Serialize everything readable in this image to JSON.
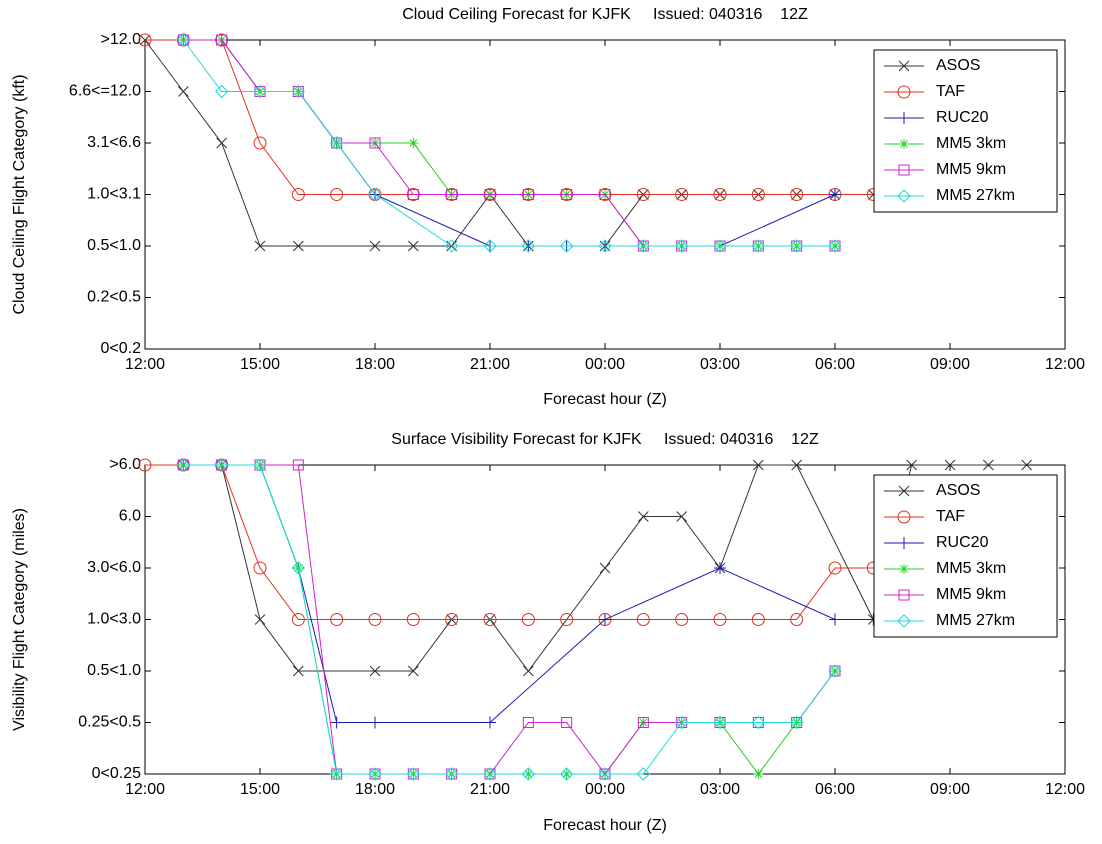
{
  "chart_data": [
    {
      "type": "line",
      "title": "Cloud Ceiling Forecast for KJFK     Issued: 040316    12Z",
      "xlabel": "Forecast hour (Z)",
      "ylabel": "Cloud Ceiling Flight Category (kft)",
      "xlim": [
        0,
        24
      ],
      "xticks": [
        {
          "value": 0,
          "label": "12:00"
        },
        {
          "value": 3,
          "label": "15:00"
        },
        {
          "value": 6,
          "label": "18:00"
        },
        {
          "value": 9,
          "label": "21:00"
        },
        {
          "value": 12,
          "label": "00:00"
        },
        {
          "value": 15,
          "label": "03:00"
        },
        {
          "value": 18,
          "label": "06:00"
        },
        {
          "value": 21,
          "label": "09:00"
        },
        {
          "value": 24,
          "label": "12:00"
        }
      ],
      "ylim": [
        0,
        6
      ],
      "yticks": [
        {
          "value": 0,
          "label": "0<0.2"
        },
        {
          "value": 1,
          "label": "0.2<0.5"
        },
        {
          "value": 2,
          "label": "0.5<1.0"
        },
        {
          "value": 3,
          "label": "1.0<3.1"
        },
        {
          "value": 4,
          "label": "3.1<6.6"
        },
        {
          "value": 5,
          "label": "6.6<=12.0"
        },
        {
          "value": 6,
          "label": ">12.0"
        }
      ],
      "legend": "upper right",
      "series": [
        {
          "name": "ASOS",
          "color": "#333333",
          "marker": "x",
          "x": [
            0,
            1,
            2,
            3,
            4,
            6,
            7,
            8,
            9,
            10,
            12,
            13,
            14,
            15,
            16,
            17,
            18,
            19
          ],
          "values": [
            6,
            5,
            4,
            2,
            2,
            2,
            2,
            2,
            3,
            2,
            2,
            3,
            3,
            3,
            3,
            3,
            3,
            3
          ]
        },
        {
          "name": "TAF",
          "color": "#e03020",
          "marker": "o",
          "x": [
            0,
            1,
            2,
            3,
            4,
            5,
            6,
            7,
            8,
            9,
            10,
            11,
            12,
            13,
            14,
            15,
            16,
            17,
            18,
            19
          ],
          "values": [
            6,
            6,
            6,
            4,
            3,
            3,
            3,
            3,
            3,
            3,
            3,
            3,
            3,
            3,
            3,
            3,
            3,
            3,
            3,
            3
          ]
        },
        {
          "name": "RUC20",
          "color": "#1a1ab0",
          "marker": "+",
          "x": [
            1,
            2,
            3,
            4,
            5,
            6,
            9,
            10,
            11,
            12,
            13,
            14,
            15,
            18
          ],
          "values": [
            6,
            6,
            5,
            5,
            4,
            3,
            2,
            2,
            2,
            2,
            2,
            2,
            2,
            3
          ]
        },
        {
          "name": "MM5 3km",
          "color": "#20d020",
          "marker": "*",
          "x": [
            1,
            2,
            3,
            4,
            5,
            6,
            7,
            8,
            9,
            10,
            11,
            12,
            13,
            14,
            15,
            16,
            17,
            18
          ],
          "values": [
            6,
            6,
            5,
            5,
            4,
            4,
            4,
            3,
            3,
            3,
            3,
            3,
            2,
            2,
            2,
            2,
            2,
            2
          ]
        },
        {
          "name": "MM5 9km",
          "color": "#d020d0",
          "marker": "s",
          "x": [
            1,
            2,
            3,
            4,
            5,
            6,
            7,
            8,
            9,
            10,
            11,
            12,
            13,
            14,
            15,
            16,
            17,
            18
          ],
          "values": [
            6,
            6,
            5,
            5,
            4,
            4,
            3,
            3,
            3,
            3,
            3,
            3,
            2,
            2,
            2,
            2,
            2,
            2
          ]
        },
        {
          "name": "MM5 27km",
          "color": "#20d8d8",
          "marker": "d",
          "x": [
            1,
            2,
            3,
            4,
            5,
            6,
            8,
            9,
            10,
            11,
            12,
            13,
            14,
            15,
            16,
            17,
            18
          ],
          "values": [
            6,
            5,
            5,
            5,
            4,
            3,
            2,
            2,
            2,
            2,
            2,
            2,
            2,
            2,
            2,
            2,
            2
          ]
        }
      ]
    },
    {
      "type": "line",
      "title": "Surface Visibility Forecast for KJFK     Issued: 040316    12Z",
      "xlabel": "Forecast hour (Z)",
      "ylabel": "Visibility Flight Category (miles)",
      "xlim": [
        0,
        24
      ],
      "xticks": [
        {
          "value": 0,
          "label": "12:00"
        },
        {
          "value": 3,
          "label": "15:00"
        },
        {
          "value": 6,
          "label": "18:00"
        },
        {
          "value": 9,
          "label": "21:00"
        },
        {
          "value": 12,
          "label": "00:00"
        },
        {
          "value": 15,
          "label": "03:00"
        },
        {
          "value": 18,
          "label": "06:00"
        },
        {
          "value": 21,
          "label": "09:00"
        },
        {
          "value": 24,
          "label": "12:00"
        }
      ],
      "ylim": [
        0,
        6
      ],
      "yticks": [
        {
          "value": 0,
          "label": "0<0.25"
        },
        {
          "value": 1,
          "label": "0.25<0.5"
        },
        {
          "value": 2,
          "label": "0.5<1.0"
        },
        {
          "value": 3,
          "label": "1.0<3.0"
        },
        {
          "value": 4,
          "label": "3.0<6.0"
        },
        {
          "value": 5,
          "label": "6.0"
        },
        {
          "value": 6,
          "label": ">6.0"
        }
      ],
      "legend": "upper right",
      "series": [
        {
          "name": "ASOS",
          "color": "#333333",
          "marker": "x",
          "x": [
            1,
            2,
            3,
            4,
            6,
            7,
            8,
            9,
            10,
            12,
            13,
            14,
            15,
            16,
            17,
            19,
            20,
            21,
            22,
            23
          ],
          "values": [
            6,
            6,
            3,
            2,
            2,
            2,
            3,
            3,
            2,
            4,
            5,
            5,
            4,
            6,
            6,
            3,
            6,
            6,
            6,
            6
          ]
        },
        {
          "name": "TAF",
          "color": "#e03020",
          "marker": "o",
          "x": [
            0,
            1,
            2,
            3,
            4,
            5,
            6,
            7,
            8,
            9,
            10,
            11,
            12,
            13,
            14,
            15,
            16,
            17,
            18,
            19
          ],
          "values": [
            6,
            6,
            6,
            4,
            3,
            3,
            3,
            3,
            3,
            3,
            3,
            3,
            3,
            3,
            3,
            3,
            3,
            3,
            4,
            4
          ]
        },
        {
          "name": "RUC20",
          "color": "#1a1ab0",
          "marker": "+",
          "x": [
            1,
            2,
            3,
            4,
            5,
            6,
            9,
            12,
            15,
            18,
            19
          ],
          "values": [
            6,
            6,
            6,
            4,
            1,
            1,
            1,
            3,
            4,
            3,
            3
          ]
        },
        {
          "name": "MM5 3km",
          "color": "#20d020",
          "marker": "*",
          "x": [
            1,
            2,
            3,
            4,
            5,
            6,
            7,
            8,
            9,
            10,
            11,
            12,
            13,
            14,
            15,
            16,
            17,
            18
          ],
          "values": [
            6,
            6,
            6,
            4,
            0,
            0,
            0,
            0,
            0,
            0,
            0,
            0,
            1,
            1,
            1,
            0,
            1,
            2
          ]
        },
        {
          "name": "MM5 9km",
          "color": "#d020d0",
          "marker": "s",
          "x": [
            1,
            2,
            3,
            4,
            5,
            6,
            7,
            8,
            9,
            10,
            11,
            12,
            13,
            14,
            15,
            16,
            17,
            18
          ],
          "values": [
            6,
            6,
            6,
            6,
            0,
            0,
            0,
            0,
            0,
            1,
            1,
            0,
            1,
            1,
            1,
            1,
            1,
            2
          ]
        },
        {
          "name": "MM5 27km",
          "color": "#20d8d8",
          "marker": "d",
          "x": [
            1,
            2,
            3,
            4,
            5,
            6,
            7,
            8,
            9,
            10,
            11,
            12,
            13,
            14,
            15,
            16,
            17,
            18
          ],
          "values": [
            6,
            6,
            6,
            4,
            0,
            0,
            0,
            0,
            0,
            0,
            0,
            0,
            0,
            1,
            1,
            1,
            1,
            2
          ]
        }
      ]
    }
  ]
}
